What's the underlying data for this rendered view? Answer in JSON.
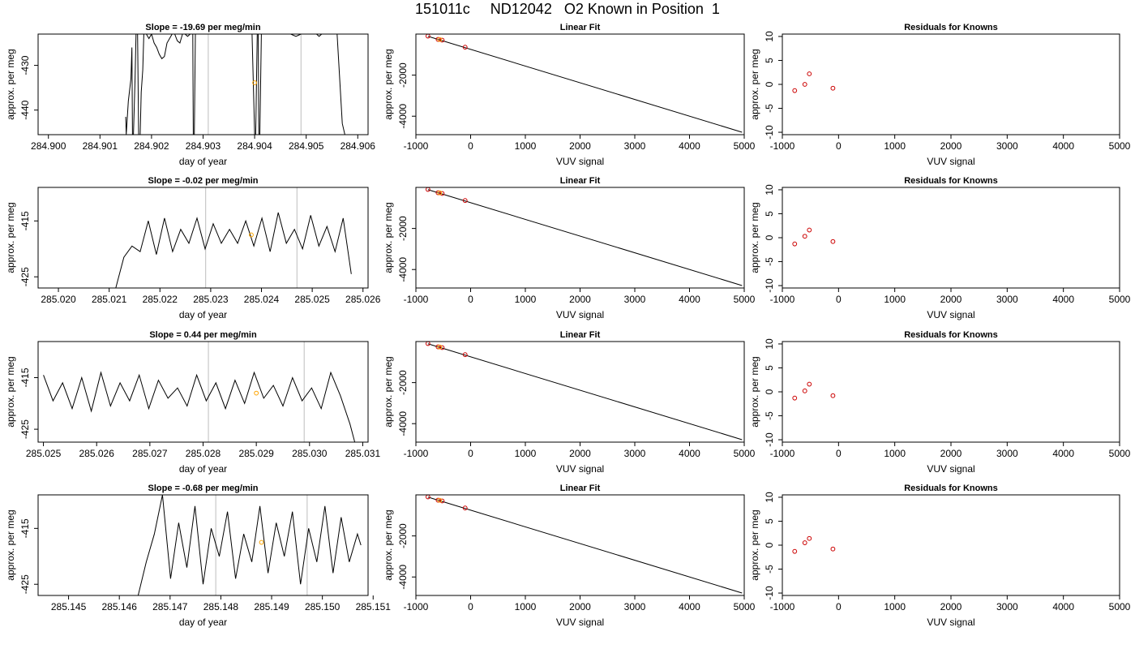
{
  "figure": {
    "title": "151011c     ND12042   O2 Known in Position  1"
  },
  "colors": {
    "trace": "#000000",
    "known_point": "#ffa500",
    "fit_point": "#cc0000",
    "vline": "#c8c8c8",
    "fit_line": "#000000"
  },
  "chart_data": [
    {
      "type": "line",
      "panel": "row1-timeseries",
      "title": "Slope =  -19.69  per meg/min",
      "xlabel": "day of year",
      "ylabel": "approx. per meg",
      "xlim": [
        284.8998,
        284.9062
      ],
      "ylim": [
        -445.5,
        -423
      ],
      "xticks": [
        284.9,
        284.901,
        284.902,
        284.903,
        284.904,
        284.905,
        284.906
      ],
      "xtick_labels": [
        "284.900",
        "284.901",
        "284.902",
        "284.903",
        "284.904",
        "284.905",
        "284.906"
      ],
      "yticks": [
        -430,
        -440
      ],
      "ytick_labels": [
        "-430",
        "-440"
      ],
      "vlines": [
        284.9031,
        284.9049
      ],
      "known_point": {
        "x": 284.904,
        "y": -433.9
      },
      "series": [
        {
          "x": [
            284.9015,
            284.90151,
            284.90155,
            284.9016,
            284.90162,
            284.90163,
            284.90165,
            284.90168,
            284.9017,
            284.90173,
            284.90175,
            284.90178,
            284.9018,
            284.90183,
            284.90185,
            284.9019,
            284.90195,
            284.902,
            284.90205,
            284.9021,
            284.90215,
            284.9022,
            284.90225,
            284.9023,
            284.9024,
            284.90245,
            284.9025,
            284.90255,
            284.9026,
            284.90265,
            284.9027,
            284.90275,
            284.9028,
            284.90281,
            284.90283,
            284.90285,
            284.90287,
            284.9029,
            284.90295,
            284.90395,
            284.904,
            284.90402,
            284.90405,
            284.90407,
            284.90408,
            284.9041,
            284.90413,
            284.90415,
            284.9042,
            284.9043,
            284.9045,
            284.9047,
            284.9048,
            284.9049,
            284.905,
            284.9051,
            284.9052,
            284.90525,
            284.9053,
            284.9054,
            284.9055,
            284.9056,
            284.9057,
            284.90575
          ],
          "y": [
            -441.5,
            -445.5,
            -438,
            -433,
            -426,
            -445.5,
            -445.5,
            -433,
            -423,
            -423,
            -445.5,
            -445.5,
            -436,
            -431,
            -423,
            -423,
            -424,
            -423,
            -425,
            -426,
            -427.5,
            -428.5,
            -428,
            -425,
            -423,
            -423,
            -424.5,
            -425,
            -423,
            -423,
            -423.5,
            -423,
            -423,
            -445.5,
            -445.5,
            -423,
            -423,
            -423,
            -423,
            -423,
            -445.5,
            -445.5,
            -423,
            -423,
            -445.5,
            -445.5,
            -423,
            -423,
            -423,
            -423,
            -423,
            -423,
            -423.5,
            -423,
            -423,
            -423,
            -423,
            -423.5,
            -423,
            -423,
            -423,
            -423,
            -443,
            -445.5
          ]
        }
      ]
    },
    {
      "type": "line",
      "panel": "row2-timeseries",
      "title": "Slope =  -0.02  per meg/min",
      "xlabel": "day of year",
      "ylabel": "approx. per meg",
      "xlim": [
        285.0196,
        285.0261
      ],
      "ylim": [
        -427,
        -409
      ],
      "xticks": [
        285.02,
        285.021,
        285.022,
        285.023,
        285.024,
        285.025,
        285.026
      ],
      "xtick_labels": [
        "285.020",
        "285.021",
        "285.022",
        "285.023",
        "285.024",
        "285.025",
        "285.026"
      ],
      "yticks": [
        -415,
        -425
      ],
      "ytick_labels": [
        "-415",
        "-425"
      ],
      "vlines": [
        285.0229,
        285.0247
      ],
      "known_point": {
        "x": 285.0238,
        "y": -417.5
      },
      "series": [
        {
          "x": [
            285.02113,
            285.02129,
            285.02145,
            285.02161,
            285.02177,
            285.02193,
            285.02209,
            285.02225,
            285.02241,
            285.02257,
            285.02273,
            285.02289,
            285.02305,
            285.02321,
            285.02337,
            285.02353,
            285.02369,
            285.02385,
            285.02401,
            285.02417,
            285.02433,
            285.02449,
            285.02465,
            285.02481,
            285.02497,
            285.02513,
            285.02529,
            285.02545,
            285.02561,
            285.02577
          ],
          "y": [
            -427,
            -421.5,
            -419.5,
            -420.5,
            -415,
            -421,
            -414.5,
            -420.5,
            -416.5,
            -419,
            -414.5,
            -420,
            -415.5,
            -419,
            -416.5,
            -419,
            -415,
            -419.5,
            -414.5,
            -420.5,
            -413.5,
            -419,
            -416.5,
            -420,
            -414,
            -419.5,
            -416,
            -420.5,
            -414.5,
            -424.5
          ]
        }
      ]
    },
    {
      "type": "line",
      "panel": "row3-timeseries",
      "title": "Slope =  0.44  per meg/min",
      "xlabel": "day of year",
      "ylabel": "approx. per meg",
      "xlim": [
        285.0249,
        285.0311
      ],
      "ylim": [
        -427.5,
        -408
      ],
      "xticks": [
        285.025,
        285.026,
        285.027,
        285.028,
        285.029,
        285.03,
        285.031
      ],
      "xtick_labels": [
        "285.025",
        "285.026",
        "285.027",
        "285.028",
        "285.029",
        "285.030",
        "285.031"
      ],
      "yticks": [
        -415,
        -425
      ],
      "ytick_labels": [
        "-415",
        "-425"
      ],
      "vlines": [
        285.0281,
        285.0299
      ],
      "known_point": {
        "x": 285.029,
        "y": -418.0
      },
      "series": [
        {
          "x": [
            285.025,
            285.02518,
            285.02536,
            285.02554,
            285.02572,
            285.0259,
            285.02608,
            285.02626,
            285.02644,
            285.02662,
            285.0268,
            285.02698,
            285.02716,
            285.02734,
            285.02752,
            285.0277,
            285.02788,
            285.02806,
            285.02824,
            285.02842,
            285.0286,
            285.02878,
            285.02896,
            285.02914,
            285.02932,
            285.0295,
            285.02968,
            285.02986,
            285.03004,
            285.03022,
            285.0304,
            285.03058,
            285.03076,
            285.03085
          ],
          "y": [
            -414.5,
            -419.5,
            -416,
            -421,
            -415,
            -421.5,
            -414,
            -420.5,
            -416,
            -419.5,
            -414.5,
            -421,
            -415.5,
            -419,
            -417,
            -420.5,
            -414.5,
            -419.5,
            -416,
            -421,
            -415.5,
            -420,
            -414,
            -419,
            -416.5,
            -420.5,
            -415,
            -419.5,
            -417,
            -421,
            -414,
            -418.5,
            -424,
            -427.5
          ]
        }
      ]
    },
    {
      "type": "line",
      "panel": "row4-timeseries",
      "title": "Slope =  -0.68  per meg/min",
      "xlabel": "day of year",
      "ylabel": "approx. per meg",
      "xlim": [
        285.1444,
        285.1509
      ],
      "ylim": [
        -427,
        -409
      ],
      "xticks": [
        285.145,
        285.146,
        285.147,
        285.148,
        285.149,
        285.15,
        285.151
      ],
      "xtick_labels": [
        "285.145",
        "285.146",
        "285.147",
        "285.148",
        "285.149",
        "285.150",
        "285.151"
      ],
      "yticks": [
        -415,
        -425
      ],
      "ytick_labels": [
        "-415",
        "-425"
      ],
      "vlines": [
        285.1479,
        285.1497
      ],
      "known_point": {
        "x": 285.1488,
        "y": -417.5
      },
      "series": [
        {
          "x": [
            285.14637,
            285.14653,
            285.14669,
            285.14685,
            285.14701,
            285.14717,
            285.14733,
            285.14749,
            285.14765,
            285.14781,
            285.14797,
            285.14813,
            285.14829,
            285.14845,
            285.14861,
            285.14877,
            285.14893,
            285.14909,
            285.14925,
            285.14941,
            285.14957,
            285.14973,
            285.14989,
            285.15005,
            285.15021,
            285.15037,
            285.15053,
            285.15069,
            285.15076
          ],
          "y": [
            -427,
            -421,
            -416,
            -409,
            -424,
            -414,
            -422,
            -411,
            -425,
            -415,
            -420,
            -412,
            -424,
            -416,
            -421,
            -411,
            -423,
            -414,
            -420,
            -412,
            -425,
            -415,
            -421,
            -411,
            -423,
            -413,
            -421,
            -416,
            -418
          ]
        }
      ]
    },
    {
      "type": "scatter",
      "panel": "linear-fit",
      "applies_to_rows": 4,
      "title": "Linear Fit",
      "xlabel": "VUV signal",
      "ylabel": "approx. per meg",
      "xlim": [
        -1000,
        5000
      ],
      "ylim": [
        -4900,
        0
      ],
      "xticks": [
        -1000,
        0,
        1000,
        2000,
        3000,
        4000,
        5000
      ],
      "xtick_labels": [
        "-1000",
        "0",
        "1000",
        "2000",
        "3000",
        "4000",
        "5000"
      ],
      "yticks": [
        -2000,
        -4000
      ],
      "ytick_labels": [
        "-2000",
        "-4000"
      ],
      "fit_line": {
        "x": [
          -780,
          4960
        ],
        "y": [
          -110,
          -4780
        ]
      },
      "points": {
        "x": [
          -780,
          -595,
          -520,
          -100
        ],
        "y": [
          -100,
          -260,
          -295,
          -640
        ]
      },
      "known_point": {
        "x": -565,
        "y": -265
      }
    },
    {
      "type": "scatter",
      "panel": "residuals",
      "applies_to_rows": 4,
      "title": "Residuals for Knowns",
      "xlabel": "VUV signal",
      "ylabel": "approx. per meg",
      "xlim": [
        -1000,
        5000
      ],
      "ylim": [
        -10.5,
        10.5
      ],
      "xticks": [
        -1000,
        0,
        1000,
        2000,
        3000,
        4000,
        5000
      ],
      "xtick_labels": [
        "-1000",
        "0",
        "1000",
        "2000",
        "3000",
        "4000",
        "5000"
      ],
      "yticks": [
        10,
        5,
        0,
        -5,
        -10
      ],
      "ytick_labels": [
        "10",
        "5",
        "0",
        "-5",
        "-10"
      ],
      "rows": [
        {
          "x": [
            -780,
            -600,
            -520,
            -100
          ],
          "y": [
            -1.3,
            0.0,
            2.2,
            -0.8
          ]
        },
        {
          "x": [
            -780,
            -600,
            -520,
            -100
          ],
          "y": [
            -1.3,
            0.3,
            1.6,
            -0.8
          ]
        },
        {
          "x": [
            -780,
            -600,
            -520,
            -100
          ],
          "y": [
            -1.3,
            0.2,
            1.6,
            -0.8
          ]
        },
        {
          "x": [
            -780,
            -600,
            -520,
            -100
          ],
          "y": [
            -1.3,
            0.5,
            1.4,
            -0.8
          ]
        }
      ]
    }
  ]
}
